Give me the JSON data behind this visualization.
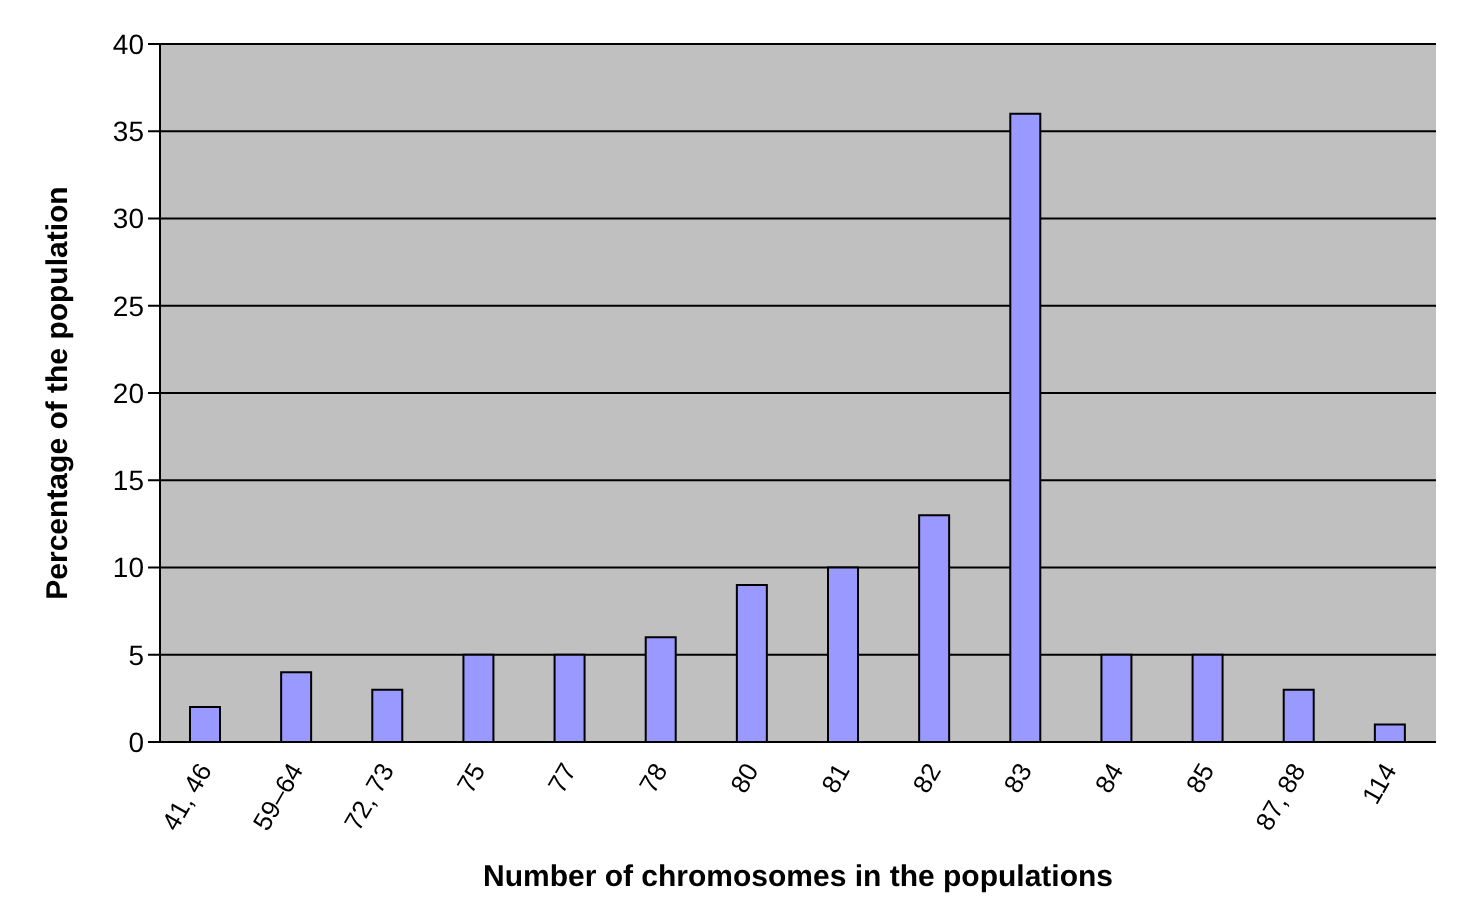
{
  "chart_data": {
    "type": "bar",
    "xlabel": "Number of chromosomes in the populations",
    "ylabel": "Percentage of the population",
    "categories": [
      "41, 46",
      "59–64",
      "72, 73",
      "75",
      "77",
      "78",
      "80",
      "81",
      "82",
      "83",
      "84",
      "85",
      "87, 88",
      "114"
    ],
    "values": [
      2,
      4,
      3,
      5,
      5,
      6,
      9,
      10,
      13,
      36,
      5,
      5,
      3,
      1
    ],
    "color": "#9999ff",
    "ylim": [
      0,
      40
    ],
    "yticks": [
      0,
      5,
      10,
      15,
      20,
      25,
      30,
      35,
      40
    ],
    "grid": "y"
  }
}
